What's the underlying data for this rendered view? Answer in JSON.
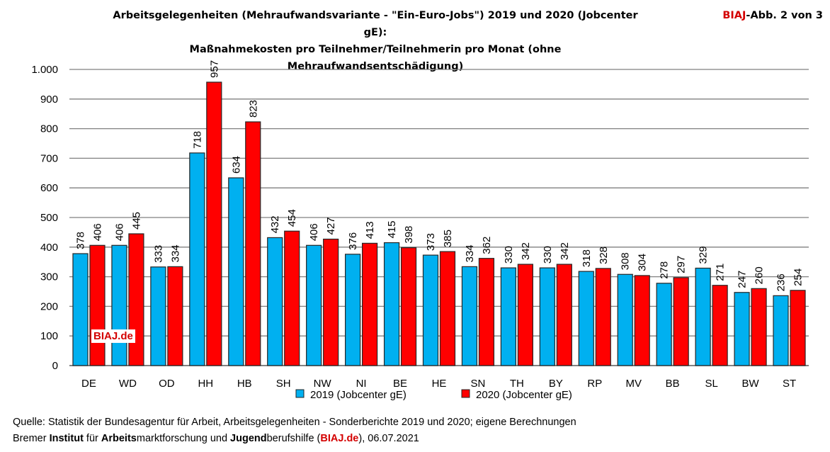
{
  "header": {
    "title_line1": "Arbeitsgelegenheiten (Mehraufwandsvariante - \"Ein-Euro-Jobs\") 2019 und 2020 (Jobcenter gE):",
    "title_line2": "Maßnahmekosten pro Teilnehmer/Teilnehmerin pro Monat (ohne Mehraufwandsentschädigung)",
    "badge_brand": "BIAJ",
    "badge_rest": "-Abb. 2 von 3"
  },
  "watermark": "BIAJ.de",
  "footer": {
    "source": "Quelle: Statistik der Bundesagentur für Arbeit, Arbeitsgelegenheiten - Sonderberichte 2019 und 2020; eigene Berechnungen",
    "line2_parts": [
      "Bremer ",
      "Institut",
      " für ",
      "Arbeits",
      "marktforschung und ",
      "Jugend",
      "berufshilfe (",
      "BIAJ.de",
      "), 06.07.2021"
    ]
  },
  "colors": {
    "s2019": "#00b0f0",
    "s2020": "#ff0000",
    "grid": "#808080",
    "brand": "#d40000"
  },
  "chart_data": {
    "type": "bar",
    "categories": [
      "DE",
      "WD",
      "OD",
      "HH",
      "HB",
      "SH",
      "NW",
      "NI",
      "BE",
      "HE",
      "SN",
      "TH",
      "BY",
      "RP",
      "MV",
      "BB",
      "SL",
      "BW",
      "ST"
    ],
    "series": [
      {
        "name": "2019 (Jobcenter gE)",
        "values": [
          378,
          406,
          333,
          718,
          634,
          432,
          406,
          376,
          415,
          373,
          334,
          330,
          330,
          318,
          308,
          278,
          329,
          247,
          236
        ]
      },
      {
        "name": "2020 (Jobcenter gE)",
        "values": [
          406,
          445,
          334,
          957,
          823,
          454,
          427,
          413,
          398,
          385,
          362,
          342,
          342,
          328,
          304,
          297,
          271,
          260,
          254
        ]
      }
    ],
    "ylim": [
      0,
      1000
    ],
    "yticks": [
      0,
      100,
      200,
      300,
      400,
      500,
      600,
      700,
      800,
      900,
      1000
    ],
    "ytick_labels": [
      "0",
      "100",
      "200",
      "300",
      "400",
      "500",
      "600",
      "700",
      "800",
      "900",
      "1.000"
    ],
    "grid": true,
    "legend": "bottom",
    "title": "Arbeitsgelegenheiten (Mehraufwandsvariante - \"Ein-Euro-Jobs\") 2019 und 2020 (Jobcenter gE): Maßnahmekosten pro Teilnehmer/Teilnehmerin pro Monat (ohne Mehraufwandsentschädigung)"
  }
}
